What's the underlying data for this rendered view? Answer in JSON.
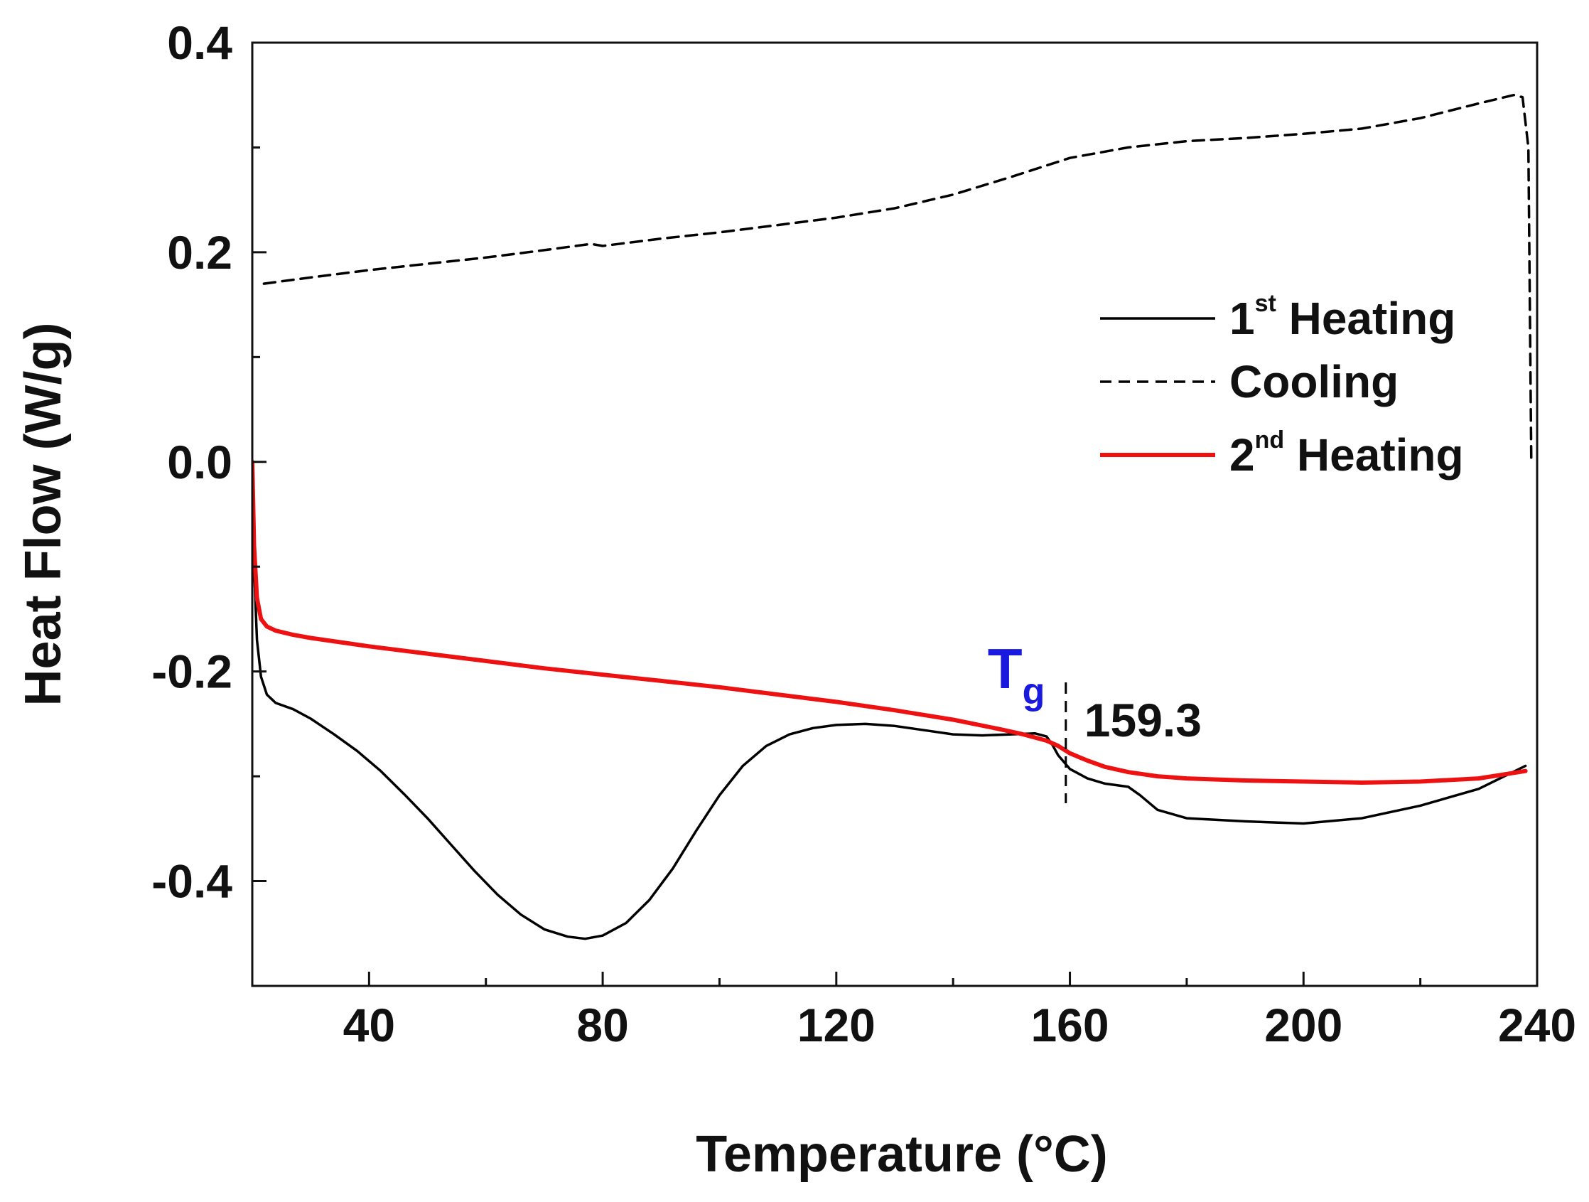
{
  "chart_data": {
    "type": "line",
    "title": "",
    "xlabel": "Temperature (°C)",
    "ylabel": "Heat Flow (W/g)",
    "xlim": [
      20,
      240
    ],
    "ylim": [
      -0.5,
      0.4
    ],
    "x_ticks": [
      40,
      80,
      120,
      160,
      200,
      240
    ],
    "x_tick_labels": [
      "40",
      "80",
      "120",
      "160",
      "200",
      "240"
    ],
    "y_ticks": [
      0.4,
      0.2,
      0.0,
      -0.2,
      -0.4
    ],
    "y_tick_labels": [
      "0.4",
      "0.2",
      "0.0",
      "-0.2",
      "-0.4"
    ],
    "grid": false,
    "legend_position": "right",
    "series": [
      {
        "name": "1st Heating",
        "label_main": "1",
        "label_sup": "st",
        "label_rest": " Heating",
        "color": "#000000",
        "dash": "solid",
        "x": [
          20,
          20.3,
          20.8,
          21.5,
          22.5,
          24,
          27,
          30,
          34,
          38,
          42,
          46,
          50,
          54,
          58,
          62,
          66,
          70,
          74,
          77,
          80,
          84,
          88,
          92,
          96,
          100,
          104,
          108,
          112,
          116,
          120,
          125,
          130,
          135,
          140,
          145,
          150,
          154,
          156,
          157,
          158,
          160,
          163,
          166,
          170,
          172,
          175,
          180,
          190,
          200,
          210,
          220,
          230,
          238
        ],
        "y": [
          0.0,
          -0.1,
          -0.17,
          -0.205,
          -0.222,
          -0.23,
          -0.236,
          -0.245,
          -0.26,
          -0.276,
          -0.295,
          -0.317,
          -0.34,
          -0.365,
          -0.39,
          -0.413,
          -0.432,
          -0.446,
          -0.453,
          -0.455,
          -0.452,
          -0.44,
          -0.418,
          -0.388,
          -0.352,
          -0.318,
          -0.29,
          -0.271,
          -0.26,
          -0.254,
          -0.251,
          -0.25,
          -0.252,
          -0.256,
          -0.26,
          -0.261,
          -0.26,
          -0.259,
          -0.262,
          -0.27,
          -0.28,
          -0.293,
          -0.302,
          -0.307,
          -0.31,
          -0.318,
          -0.332,
          -0.34,
          -0.343,
          -0.345,
          -0.34,
          -0.328,
          -0.312,
          -0.29
        ]
      },
      {
        "name": "Cooling",
        "label_main": "Cooling",
        "label_sup": "",
        "label_rest": "",
        "color": "#000000",
        "dash": "dashed",
        "x": [
          22,
          30,
          40,
          50,
          60,
          70,
          78,
          80,
          90,
          100,
          110,
          120,
          130,
          140,
          150,
          160,
          170,
          180,
          190,
          200,
          210,
          220,
          230,
          236,
          237.5,
          238.5,
          239
        ],
        "y": [
          0.17,
          0.176,
          0.183,
          0.189,
          0.195,
          0.202,
          0.208,
          0.206,
          0.213,
          0.219,
          0.226,
          0.233,
          0.242,
          0.255,
          0.272,
          0.29,
          0.3,
          0.306,
          0.309,
          0.313,
          0.318,
          0.328,
          0.342,
          0.35,
          0.348,
          0.3,
          0.0
        ]
      },
      {
        "name": "2nd Heating",
        "label_main": "2",
        "label_sup": "nd",
        "label_rest": " Heating",
        "color": "#ee1111",
        "dash": "solid",
        "x": [
          20,
          20.3,
          20.8,
          21.5,
          22.5,
          24,
          27,
          30,
          40,
          50,
          60,
          70,
          80,
          90,
          100,
          110,
          120,
          130,
          140,
          148,
          152,
          156,
          158,
          160,
          163,
          166,
          170,
          175,
          180,
          190,
          200,
          210,
          220,
          230,
          238
        ],
        "y": [
          0.0,
          -0.08,
          -0.13,
          -0.15,
          -0.157,
          -0.161,
          -0.165,
          -0.168,
          -0.176,
          -0.183,
          -0.19,
          -0.197,
          -0.203,
          -0.209,
          -0.215,
          -0.222,
          -0.229,
          -0.237,
          -0.246,
          -0.255,
          -0.26,
          -0.266,
          -0.271,
          -0.278,
          -0.285,
          -0.291,
          -0.296,
          -0.3,
          -0.302,
          -0.304,
          -0.305,
          -0.306,
          -0.305,
          -0.302,
          -0.295
        ]
      }
    ],
    "annotations": {
      "tg_symbol": "T",
      "tg_subscript": "g",
      "tg_color": "#1a1adf",
      "tg_value": "159.3",
      "tg_x": 159.3
    }
  }
}
